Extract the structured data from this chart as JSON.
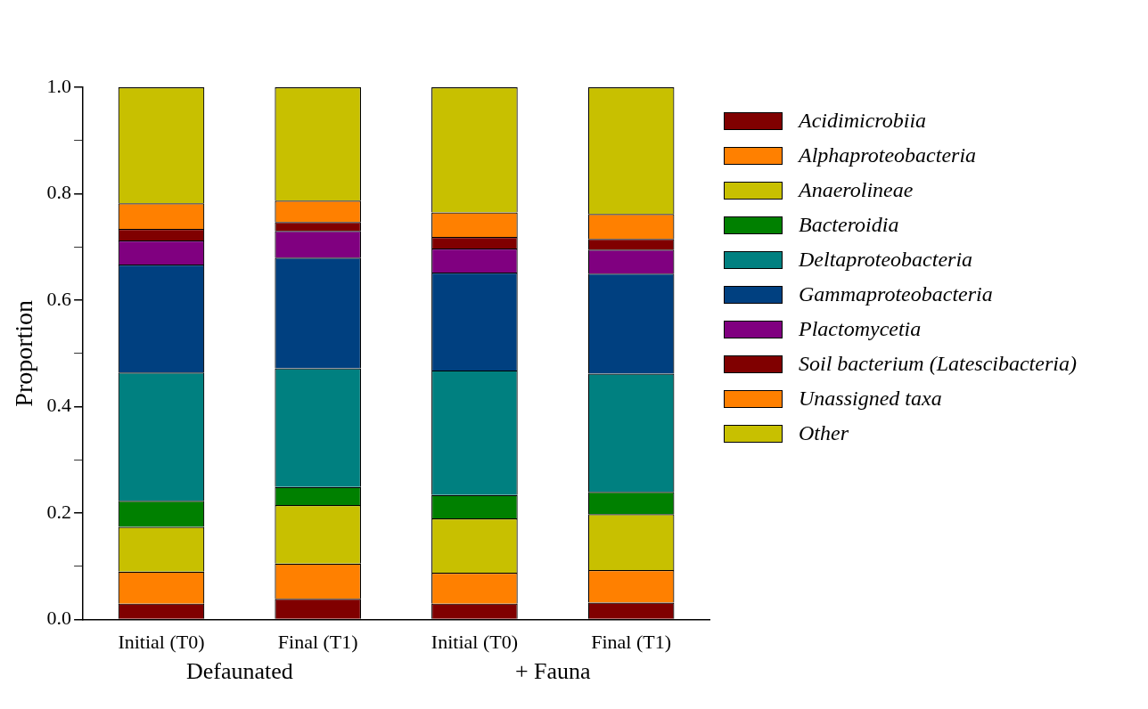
{
  "chart_data": {
    "type": "bar",
    "stacked": true,
    "ylabel": "Proportion",
    "categories": [
      "Initial (T0)",
      "Final (T1)",
      "Initial (T0)",
      "Final (T1)"
    ],
    "annotations": [
      "Defaunated",
      "+ Fauna"
    ],
    "series": [
      {
        "name": "Acidimicrobiia",
        "color": "#800000",
        "values": [
          0.03,
          0.039,
          0.03,
          0.032
        ]
      },
      {
        "name": "Alphaproteobacteria",
        "color": "#ff8000",
        "values": [
          0.06,
          0.066,
          0.058,
          0.061
        ]
      },
      {
        "name": "Anaerolineae",
        "color": "#c8c000",
        "values": [
          0.084,
          0.11,
          0.102,
          0.105
        ]
      },
      {
        "name": "Bacteroidia",
        "color": "#008000",
        "values": [
          0.049,
          0.034,
          0.044,
          0.042
        ]
      },
      {
        "name": "Deltaproteobacteria",
        "color": "#008080",
        "values": [
          0.241,
          0.223,
          0.234,
          0.222
        ]
      },
      {
        "name": "Gammaproteobacteria",
        "color": "#004080",
        "values": [
          0.203,
          0.208,
          0.184,
          0.188
        ]
      },
      {
        "name": "Plactomycetia",
        "color": "#800080",
        "values": [
          0.045,
          0.05,
          0.045,
          0.045
        ]
      },
      {
        "name": "Soil bacterium (Latescibacteria)",
        "color": "#800000",
        "values": [
          0.022,
          0.017,
          0.022,
          0.02
        ]
      },
      {
        "name": "Unassigned taxa",
        "color": "#ff8000",
        "values": [
          0.048,
          0.04,
          0.046,
          0.047
        ]
      },
      {
        "name": "Other",
        "color": "#c8c000",
        "values": [
          0.218,
          0.213,
          0.235,
          0.238
        ]
      }
    ],
    "ylim": [
      0,
      1
    ],
    "yticks": [
      {
        "value": 0,
        "label": "0.0"
      },
      {
        "value": 0.1,
        "label": null
      },
      {
        "value": 0.2,
        "label": "0.2"
      },
      {
        "value": 0.3,
        "label": null
      },
      {
        "value": 0.4,
        "label": "0.4"
      },
      {
        "value": 0.5,
        "label": null
      },
      {
        "value": 0.6,
        "label": "0.6"
      },
      {
        "value": 0.7,
        "label": null
      },
      {
        "value": 0.8,
        "label": "0.8"
      },
      {
        "value": 0.9,
        "label": null
      },
      {
        "value": 1,
        "label": "1.0"
      }
    ],
    "grid": false,
    "legend": "right"
  }
}
